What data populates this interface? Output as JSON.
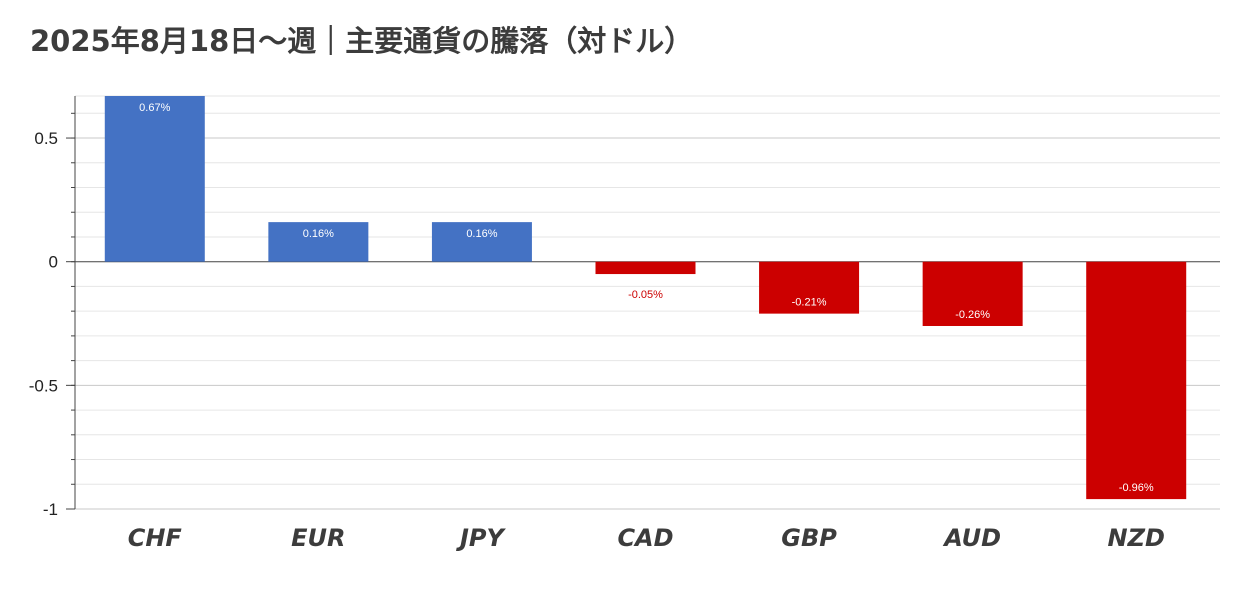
{
  "title": "2025年8月18日～週｜主要通貨の騰落（対ドル）",
  "chart_data": {
    "type": "bar",
    "title": "2025年8月18日～週｜主要通貨の騰落（対ドル）",
    "xlabel": "",
    "ylabel": "",
    "categories": [
      "CHF",
      "EUR",
      "JPY",
      "CAD",
      "GBP",
      "AUD",
      "NZD"
    ],
    "values": [
      0.67,
      0.16,
      0.16,
      -0.05,
      -0.21,
      -0.26,
      -0.96
    ],
    "data_labels": [
      "0.67%",
      "0.16%",
      "0.16%",
      "-0.05%",
      "-0.21%",
      "-0.26%",
      "-0.96%"
    ],
    "ylim": [
      -1,
      0.67
    ],
    "yticks": [
      0.5,
      0,
      -0.5,
      -1
    ],
    "ytick_labels": [
      "0.5",
      "0",
      "-0.5",
      "-1"
    ],
    "minor_tick_step": 0.1,
    "grid": true,
    "legend": "none",
    "colors": {
      "positive": "#4472c4",
      "negative": "#cc0000",
      "positive_label": "#ffffff",
      "negative_label_inside": "#ffffff",
      "negative_label_outside": "#cc0000",
      "grid_major": "#c8c8c8",
      "grid_minor": "#e6e6e6",
      "axis": "#444444"
    }
  }
}
